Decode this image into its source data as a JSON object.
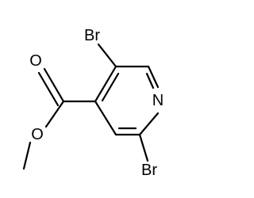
{
  "nodes": [
    {
      "label": "Br"
    },
    {
      "label": "N"
    },
    {
      "label": "Br"
    },
    {
      "label": "O"
    },
    {
      "label": "O"
    }
  ]
}
